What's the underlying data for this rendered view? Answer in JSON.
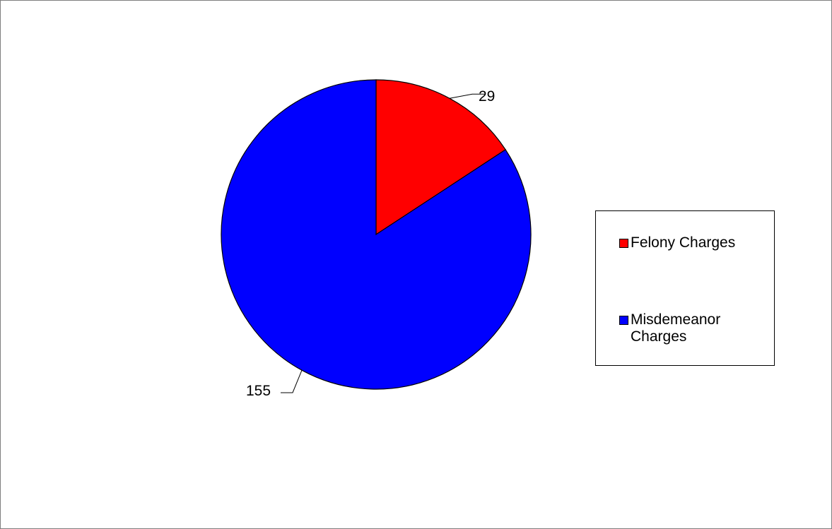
{
  "chart_data": {
    "type": "pie",
    "title": "",
    "legend_position": "right",
    "slices": [
      {
        "label": "Felony Charges",
        "value": 29,
        "color": "#ff0000"
      },
      {
        "label": "Misdemeanor Charges",
        "value": 155,
        "color": "#0000ff"
      }
    ],
    "data_labels": [
      "29",
      "155"
    ]
  },
  "legend": {
    "items": [
      {
        "label": "Felony Charges",
        "color": "#ff0000"
      },
      {
        "label": "Misdemeanor Charges",
        "color": "#0000ff"
      }
    ]
  }
}
